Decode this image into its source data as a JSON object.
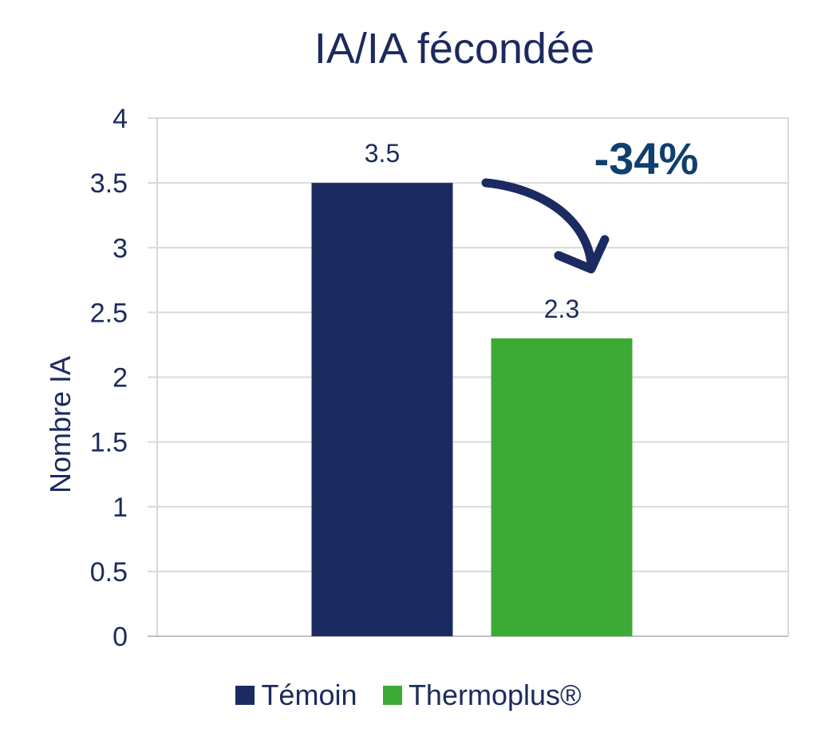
{
  "chart_data": {
    "type": "bar",
    "title": "IA/IA fécondée",
    "ylabel": "Nombre IA",
    "xlabel": "",
    "ylim": [
      0,
      4
    ],
    "yticks": [
      "0",
      "0.5",
      "1",
      "1.5",
      "2",
      "2.5",
      "3",
      "3.5",
      "4"
    ],
    "grid": true,
    "legend_position": "bottom",
    "series": [
      {
        "name": "Témoin",
        "values": [
          3.5
        ],
        "label": "3.5",
        "color": "#1c2a62"
      },
      {
        "name": "Thermoplus®",
        "values": [
          2.3
        ],
        "label": "2.3",
        "color": "#3daa35"
      }
    ],
    "annotation": {
      "text": "-34%",
      "color": "#0f3f6e",
      "arrow": "curved-down-right"
    }
  }
}
